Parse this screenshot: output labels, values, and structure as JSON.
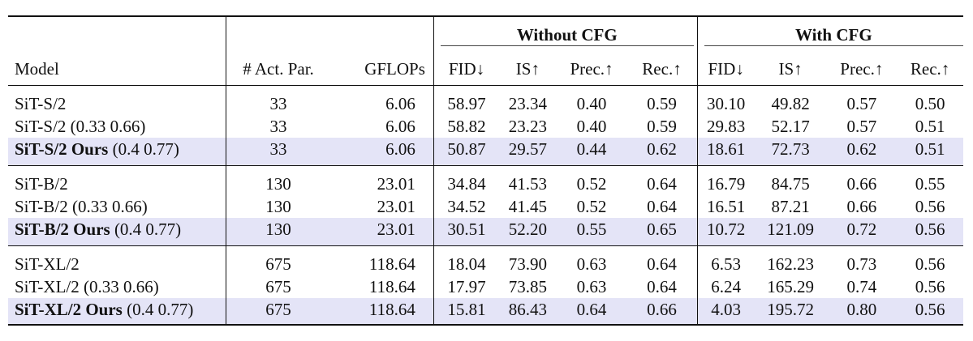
{
  "header": {
    "group_without": "Without CFG",
    "group_with": "With CFG",
    "columns": [
      "Model",
      "# Act. Par.",
      "GFLOPs",
      "FID↓",
      "IS↑",
      "Prec.↑",
      "Rec.↑",
      "FID↓",
      "IS↑",
      "Prec.↑",
      "Rec.↑"
    ]
  },
  "groups": [
    {
      "rows": [
        {
          "model": "SiT-S/2",
          "suffix": "",
          "ours": false,
          "params": "33",
          "gflops": "6.06",
          "vals": [
            "58.97",
            "23.34",
            "0.40",
            "0.59",
            "30.10",
            "49.82",
            "0.57",
            "0.50"
          ],
          "bold": [
            false,
            false,
            false,
            false,
            false,
            false,
            false,
            false
          ]
        },
        {
          "model": "SiT-S/2 (0.33 0.66)",
          "suffix": "",
          "ours": false,
          "params": "33",
          "gflops": "6.06",
          "vals": [
            "58.82",
            "23.23",
            "0.40",
            "0.59",
            "29.83",
            "52.17",
            "0.57",
            "0.51"
          ],
          "bold": [
            false,
            false,
            false,
            false,
            false,
            false,
            false,
            true
          ]
        },
        {
          "model": "SiT-S/2 Ours",
          "suffix": " (0.4 0.77)",
          "ours": true,
          "params": "33",
          "gflops": "6.06",
          "vals": [
            "50.87",
            "29.57",
            "0.44",
            "0.62",
            "18.61",
            "72.73",
            "0.62",
            "0.51"
          ],
          "bold": [
            true,
            true,
            true,
            true,
            true,
            true,
            true,
            true
          ]
        }
      ]
    },
    {
      "rows": [
        {
          "model": "SiT-B/2",
          "suffix": "",
          "ours": false,
          "params": "130",
          "gflops": "23.01",
          "vals": [
            "34.84",
            "41.53",
            "0.52",
            "0.64",
            "16.79",
            "84.75",
            "0.66",
            "0.55"
          ],
          "bold": [
            false,
            false,
            false,
            false,
            false,
            false,
            false,
            false
          ]
        },
        {
          "model": "SiT-B/2 (0.33 0.66)",
          "suffix": "",
          "ours": false,
          "params": "130",
          "gflops": "23.01",
          "vals": [
            "34.52",
            "41.45",
            "0.52",
            "0.64",
            "16.51",
            "87.21",
            "0.66",
            "0.56"
          ],
          "bold": [
            false,
            false,
            false,
            false,
            false,
            false,
            false,
            true
          ]
        },
        {
          "model": "SiT-B/2 Ours",
          "suffix": " (0.4 0.77)",
          "ours": true,
          "params": "130",
          "gflops": "23.01",
          "vals": [
            "30.51",
            "52.20",
            "0.55",
            "0.65",
            "10.72",
            "121.09",
            "0.72",
            "0.56"
          ],
          "bold": [
            true,
            true,
            true,
            true,
            true,
            true,
            true,
            true
          ]
        }
      ]
    },
    {
      "rows": [
        {
          "model": "SiT-XL/2",
          "suffix": "",
          "ours": false,
          "params": "675",
          "gflops": "118.64",
          "vals": [
            "18.04",
            "73.90",
            "0.63",
            "0.64",
            "6.53",
            "162.23",
            "0.73",
            "0.56"
          ],
          "bold": [
            false,
            false,
            false,
            false,
            false,
            false,
            false,
            true
          ]
        },
        {
          "model": "SiT-XL/2 (0.33 0.66)",
          "suffix": "",
          "ours": false,
          "params": "675",
          "gflops": "118.64",
          "vals": [
            "17.97",
            "73.85",
            "0.63",
            "0.64",
            "6.24",
            "165.29",
            "0.74",
            "0.56"
          ],
          "bold": [
            false,
            false,
            false,
            false,
            false,
            false,
            false,
            true
          ]
        },
        {
          "model": "SiT-XL/2 Ours",
          "suffix": " (0.4 0.77)",
          "ours": true,
          "params": "675",
          "gflops": "118.64",
          "vals": [
            "15.81",
            "86.43",
            "0.64",
            "0.66",
            "4.03",
            "195.72",
            "0.80",
            "0.56"
          ],
          "bold": [
            true,
            true,
            true,
            true,
            true,
            true,
            true,
            true
          ]
        }
      ]
    }
  ],
  "colors": {
    "highlight_row": "#e4e4f7",
    "rule": "#111111"
  }
}
